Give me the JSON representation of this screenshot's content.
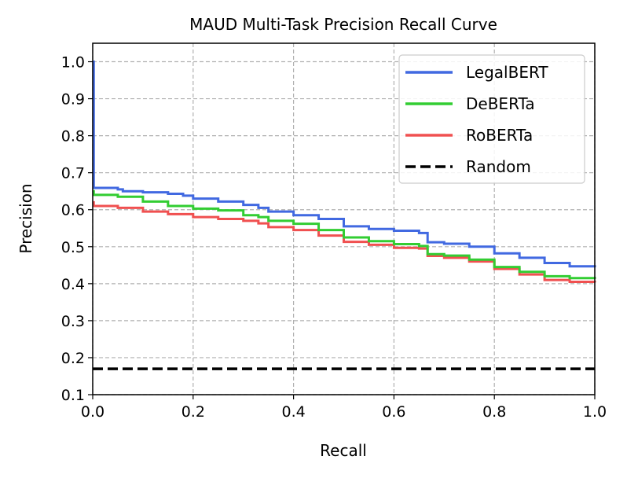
{
  "chart_data": {
    "type": "line",
    "title": "MAUD Multi-Task Precision Recall Curve",
    "xlabel": "Recall",
    "ylabel": "Precision",
    "xlim": [
      0.0,
      1.0
    ],
    "ylim": [
      0.1,
      1.05
    ],
    "xticks": [
      "0.0",
      "0.2",
      "0.4",
      "0.6",
      "0.8",
      "1.0"
    ],
    "yticks": [
      "0.1",
      "0.2",
      "0.3",
      "0.4",
      "0.5",
      "0.6",
      "0.7",
      "0.8",
      "0.9",
      "1.0"
    ],
    "grid": true,
    "legend_position": "top-right",
    "series": [
      {
        "name": "LegalBERT",
        "color": "#4169e1",
        "style": "solid",
        "x": [
          0.0,
          0.0,
          0.002,
          0.05,
          0.06,
          0.1,
          0.15,
          0.18,
          0.2,
          0.25,
          0.3,
          0.33,
          0.35,
          0.4,
          0.45,
          0.5,
          0.55,
          0.6,
          0.65,
          0.667,
          0.667,
          0.7,
          0.75,
          0.8,
          0.85,
          0.9,
          0.95,
          1.0
        ],
        "y": [
          1.0,
          1.0,
          0.659,
          0.655,
          0.65,
          0.647,
          0.643,
          0.638,
          0.63,
          0.622,
          0.613,
          0.605,
          0.595,
          0.585,
          0.575,
          0.555,
          0.548,
          0.543,
          0.537,
          0.537,
          0.512,
          0.508,
          0.5,
          0.482,
          0.47,
          0.456,
          0.447,
          0.444
        ]
      },
      {
        "name": "DeBERTa",
        "color": "#32cd32",
        "style": "solid",
        "x": [
          0.0,
          0.002,
          0.05,
          0.1,
          0.15,
          0.2,
          0.25,
          0.3,
          0.33,
          0.35,
          0.4,
          0.45,
          0.5,
          0.55,
          0.6,
          0.65,
          0.667,
          0.667,
          0.7,
          0.75,
          0.8,
          0.85,
          0.9,
          0.95,
          1.0
        ],
        "y": [
          0.65,
          0.64,
          0.635,
          0.622,
          0.61,
          0.603,
          0.598,
          0.585,
          0.58,
          0.57,
          0.562,
          0.545,
          0.525,
          0.515,
          0.507,
          0.502,
          0.5,
          0.48,
          0.476,
          0.465,
          0.445,
          0.432,
          0.42,
          0.415,
          0.413
        ]
      },
      {
        "name": "RoBERTa",
        "color": "#f05050",
        "style": "solid",
        "x": [
          0.0,
          0.002,
          0.05,
          0.1,
          0.15,
          0.2,
          0.25,
          0.3,
          0.33,
          0.35,
          0.4,
          0.45,
          0.5,
          0.55,
          0.6,
          0.65,
          0.667,
          0.667,
          0.7,
          0.75,
          0.8,
          0.85,
          0.9,
          0.95,
          1.0
        ],
        "y": [
          0.62,
          0.61,
          0.605,
          0.595,
          0.588,
          0.58,
          0.575,
          0.57,
          0.563,
          0.553,
          0.545,
          0.53,
          0.513,
          0.505,
          0.497,
          0.495,
          0.494,
          0.475,
          0.47,
          0.46,
          0.44,
          0.425,
          0.41,
          0.405,
          0.403
        ]
      },
      {
        "name": "Random",
        "color": "#000000",
        "style": "dashed",
        "x": [
          0.0,
          1.0
        ],
        "y": [
          0.17,
          0.17
        ]
      }
    ]
  }
}
